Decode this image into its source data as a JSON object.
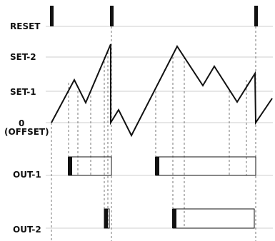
{
  "labels": {
    "reset": "RESET",
    "set2": "SET-2",
    "set1": "SET-1",
    "zero": "0",
    "offset": "(OFFSET)",
    "out1": "OUT-1",
    "out2": "OUT-2"
  },
  "colors": {
    "ink": "#111111",
    "gridline": "#cfcfcf",
    "guide": "#555555"
  }
}
